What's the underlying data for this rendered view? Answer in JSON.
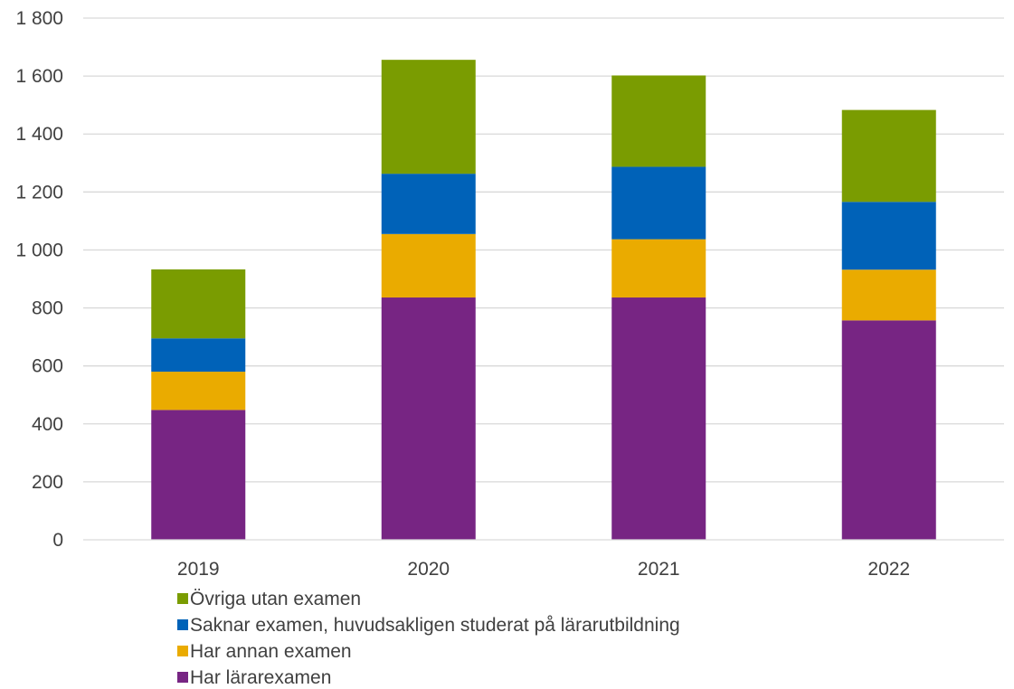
{
  "chart_data": {
    "type": "bar",
    "stacked": true,
    "categories": [
      "2019",
      "2020",
      "2021",
      "2022"
    ],
    "series": [
      {
        "name": "Har lärarexamen",
        "color": "#772583",
        "values": [
          448,
          836,
          836,
          757
        ]
      },
      {
        "name": "Har annan examen",
        "color": "#EAAB00",
        "values": [
          132,
          219,
          201,
          175
        ]
      },
      {
        "name": "Saknar examen, huvudsakligen studerat på lärarutbildning",
        "color": "#0062B8",
        "values": [
          115,
          208,
          250,
          234
        ]
      },
      {
        "name": "Övriga utan examen",
        "color": "#7A9C01",
        "values": [
          238,
          393,
          315,
          317
        ]
      }
    ],
    "ylim": [
      0,
      1800
    ],
    "yticks": [
      0,
      200,
      400,
      600,
      800,
      1000,
      1200,
      1400,
      1600,
      1800
    ],
    "ytick_labels": [
      "0",
      "200",
      "400",
      "600",
      "800",
      "1 000",
      "1 200",
      "1 400",
      "1 600",
      "1 800"
    ],
    "grid": true,
    "legend_position": "bottom-left",
    "legend_order": [
      3,
      2,
      1,
      0
    ],
    "title": "",
    "xlabel": "",
    "ylabel": ""
  }
}
